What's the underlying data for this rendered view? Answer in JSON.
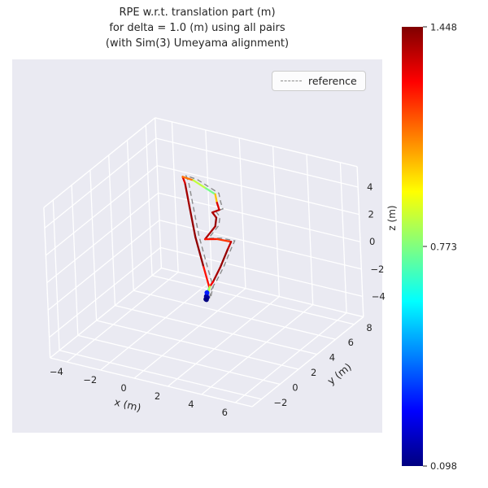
{
  "title": {
    "line1": "RPE w.r.t. translation part (m)",
    "line2": "for delta = 1.0 (m) using all pairs",
    "line3": "(with Sim(3) Umeyama alignment)"
  },
  "legend": {
    "reference_label": "reference"
  },
  "colors": {
    "figure_background": "#ffffff",
    "axes_background": "#eaeaf2",
    "grid": "#ffffff",
    "text": "#262626",
    "reference_line": "#8b8b8b"
  },
  "chart_data": {
    "type": "line",
    "projection": "3d",
    "title": "RPE w.r.t. translation part (m) for delta = 1.0 (m) using all pairs (with Sim(3) Umeyama alignment)",
    "xlabel": "x (m)",
    "ylabel": "y (m)",
    "zlabel": "z (m)",
    "xlim": [
      -5,
      7
    ],
    "ylim": [
      -3,
      9
    ],
    "zlim": [
      -5.5,
      5.5
    ],
    "xticks": [
      -4,
      -2,
      0,
      2,
      4,
      6
    ],
    "yticks": [
      -2,
      0,
      2,
      4,
      6,
      8
    ],
    "zticks": [
      4,
      2,
      0,
      -2,
      -4
    ],
    "grid": true,
    "legend_position": "upper right",
    "error_range": [
      0.098,
      1.448
    ],
    "colorbar": {
      "colormap": "jet",
      "max_label": "1.448",
      "mid_label": "0.773",
      "min_label": "0.098"
    },
    "series": [
      {
        "name": "trajectory colored by RPE",
        "style": "solid",
        "points": [
          [
            3.2,
            -0.75,
            0.0,
            0.098
          ],
          [
            3.12,
            -0.55,
            0.08,
            0.12
          ],
          [
            3.02,
            -0.3,
            0.18,
            0.3
          ],
          [
            2.95,
            0.1,
            0.32,
            1.1
          ],
          [
            2.0,
            1.2,
            1.05,
            1.42
          ],
          [
            0.8,
            2.6,
            2.0,
            1.43
          ],
          [
            -0.4,
            4.2,
            3.0,
            1.41
          ],
          [
            -1.3,
            5.4,
            3.8,
            1.39
          ],
          [
            -1.6,
            5.7,
            4.0,
            1.25
          ],
          [
            -1.0,
            5.75,
            3.9,
            1.0
          ],
          [
            -0.2,
            5.65,
            3.6,
            0.72
          ],
          [
            0.4,
            5.55,
            3.4,
            0.8
          ],
          [
            0.8,
            5.0,
            3.2,
            1.25
          ],
          [
            1.15,
            4.6,
            3.0,
            1.4
          ],
          [
            0.9,
            4.3,
            2.9,
            1.35
          ],
          [
            1.3,
            4.0,
            2.8,
            1.43
          ],
          [
            1.5,
            3.5,
            2.5,
            1.41
          ],
          [
            1.4,
            2.55,
            2.05,
            1.38
          ],
          [
            2.0,
            2.8,
            2.1,
            1.12
          ],
          [
            2.7,
            3.0,
            2.0,
            1.3
          ],
          [
            2.75,
            2.5,
            1.7,
            1.43
          ],
          [
            2.85,
            1.5,
            1.0,
            1.41
          ],
          [
            2.9,
            0.6,
            0.45,
            1.38
          ],
          [
            2.9,
            0.25,
            0.3,
            1.2
          ],
          [
            3.05,
            -0.2,
            0.15,
            0.5
          ],
          [
            3.2,
            -0.6,
            0.05,
            0.15
          ],
          [
            3.25,
            -0.78,
            0.0,
            0.098
          ]
        ]
      },
      {
        "name": "reference",
        "style": "dashed",
        "color": "#8b8b8b",
        "points": [
          [
            3.35,
            -0.63,
            0.05
          ],
          [
            3.27,
            -0.43,
            0.13
          ],
          [
            3.17,
            -0.18,
            0.23
          ],
          [
            3.1,
            0.22,
            0.37
          ],
          [
            2.15,
            1.32,
            1.1
          ],
          [
            0.95,
            2.72,
            2.05
          ],
          [
            -0.25,
            4.32,
            3.05
          ],
          [
            -1.15,
            5.52,
            3.85
          ],
          [
            -1.45,
            5.82,
            4.05
          ],
          [
            -0.85,
            5.87,
            3.95
          ],
          [
            -0.05,
            5.77,
            3.65
          ],
          [
            0.55,
            5.67,
            3.45
          ],
          [
            0.95,
            5.12,
            3.25
          ],
          [
            1.3,
            4.72,
            3.05
          ],
          [
            1.05,
            4.42,
            2.95
          ],
          [
            1.45,
            4.12,
            2.85
          ],
          [
            1.65,
            3.62,
            2.55
          ],
          [
            1.55,
            2.67,
            2.1
          ],
          [
            2.15,
            2.92,
            2.15
          ],
          [
            2.85,
            3.12,
            2.05
          ],
          [
            2.9,
            2.62,
            1.75
          ],
          [
            3.0,
            1.62,
            1.05
          ],
          [
            3.05,
            0.72,
            0.5
          ],
          [
            3.05,
            0.37,
            0.35
          ],
          [
            3.2,
            -0.08,
            0.2
          ],
          [
            3.35,
            -0.48,
            0.1
          ],
          [
            3.4,
            -0.66,
            0.05
          ]
        ]
      }
    ]
  }
}
